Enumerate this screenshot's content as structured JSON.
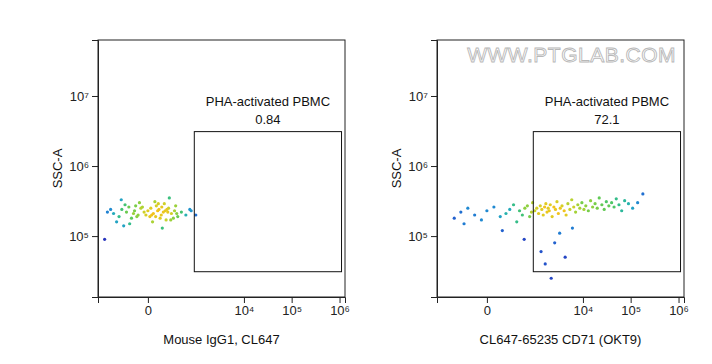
{
  "chart_data": [
    {
      "type": "scatter",
      "x_label": "Mouse IgG1, CL647",
      "y_label": "SSC-A",
      "log": true,
      "xlim": [
        -1000,
        1300000
      ],
      "ylim": [
        13500,
        63000000
      ],
      "xticks": [
        0,
        {
          "value": 10000,
          "label": "10⁴"
        },
        {
          "value": 100000,
          "label": "10⁵"
        },
        {
          "value": 1000000,
          "label": "10⁶"
        }
      ],
      "yticks": [
        {
          "value": 100000,
          "label": "10⁵"
        },
        {
          "value": 1000000,
          "label": "10⁶"
        },
        {
          "value": 10000000,
          "label": "10⁷"
        }
      ],
      "gate": {
        "x": [
          830,
          1100000
        ],
        "y": [
          31000,
          3100000
        ],
        "label": "PHA-activated PBMC",
        "value": 0.84
      },
      "x": [
        -420,
        -300,
        -250,
        -180,
        -150,
        -120,
        -90,
        -60,
        -40,
        -20,
        0,
        10,
        30,
        50,
        70,
        90,
        110,
        140,
        170,
        210,
        260,
        320,
        400,
        520,
        650,
        -350,
        -200,
        -100,
        -70,
        -30,
        20,
        40,
        60,
        80,
        120,
        160,
        200,
        -500,
        -260,
        -140,
        -80,
        -10,
        15,
        45,
        95,
        130,
        180,
        240,
        300,
        -600,
        -220,
        -50,
        25,
        65,
        100,
        150,
        280,
        900,
        700,
        -700
      ],
      "y": [
        210000,
        190000,
        240000,
        220000,
        260000,
        180000,
        230000,
        200000,
        250000,
        220000,
        230000,
        190000,
        210000,
        270000,
        240000,
        200000,
        220000,
        170000,
        250000,
        210000,
        230000,
        190000,
        220000,
        200000,
        240000,
        160000,
        280000,
        210000,
        190000,
        260000,
        200000,
        310000,
        230000,
        180000,
        290000,
        220000,
        170000,
        240000,
        330000,
        150000,
        270000,
        200000,
        250000,
        190000,
        260000,
        230000,
        350000,
        180000,
        210000,
        220000,
        140000,
        300000,
        160000,
        290000,
        130000,
        240000,
        270000,
        200000,
        230000,
        90000
      ]
    },
    {
      "type": "scatter",
      "x_label": "CL647-65235 CD71 (OKT9)",
      "y_label": "SSC-A",
      "log": true,
      "xlim": [
        -1000,
        1300000
      ],
      "ylim": [
        13500,
        63000000
      ],
      "xticks": [
        0,
        {
          "value": 10000,
          "label": "10⁴"
        },
        {
          "value": 100000,
          "label": "10⁵"
        },
        {
          "value": 1000000,
          "label": "10⁶"
        }
      ],
      "yticks": [
        {
          "value": 100000,
          "label": "10⁵"
        },
        {
          "value": 1000000,
          "label": "10⁶"
        },
        {
          "value": 10000000,
          "label": "10⁷"
        }
      ],
      "gate": {
        "x": [
          830,
          1100000
        ],
        "y": [
          31000,
          3100000
        ],
        "label": "PHA-activated PBMC",
        "value": 72.1
      },
      "annotations": [
        {
          "text": "WWW.PTGLAB.COM"
        }
      ],
      "x": [
        -380,
        -250,
        -150,
        -80,
        -30,
        0,
        40,
        90,
        150,
        200,
        260,
        320,
        380,
        450,
        520,
        600,
        680,
        750,
        800,
        -200,
        110,
        500,
        900,
        1000,
        1100,
        1200,
        1300,
        1400,
        1500,
        1600,
        1700,
        1800,
        1900,
        2000,
        2200,
        2400,
        2600,
        2800,
        3000,
        3300,
        3600,
        4000,
        4400,
        4800,
        5300,
        5800,
        6400,
        7000,
        7800,
        8600,
        9500,
        10500,
        11500,
        13000,
        14500,
        16000,
        18000,
        20000,
        22000,
        25000,
        28000,
        31000,
        35000,
        40000,
        45000,
        50000,
        57000,
        65000,
        75000,
        90000,
        110000,
        140000,
        180000,
        1250,
        1550,
        2100,
        2500,
        3200,
        4200,
        6000
      ],
      "y": [
        180000,
        220000,
        250000,
        200000,
        170000,
        230000,
        260000,
        190000,
        210000,
        240000,
        280000,
        160000,
        230000,
        200000,
        250000,
        270000,
        190000,
        220000,
        300000,
        150000,
        120000,
        90000,
        230000,
        250000,
        210000,
        270000,
        240000,
        200000,
        260000,
        290000,
        220000,
        250000,
        230000,
        280000,
        190000,
        260000,
        240000,
        310000,
        210000,
        250000,
        270000,
        230000,
        200000,
        290000,
        240000,
        330000,
        260000,
        220000,
        280000,
        250000,
        300000,
        240000,
        270000,
        230000,
        320000,
        260000,
        290000,
        250000,
        350000,
        280000,
        240000,
        310000,
        270000,
        300000,
        260000,
        340000,
        280000,
        230000,
        320000,
        290000,
        250000,
        300000,
        400000,
        60000,
        40000,
        25000,
        80000,
        110000,
        50000,
        130000
      ]
    }
  ]
}
